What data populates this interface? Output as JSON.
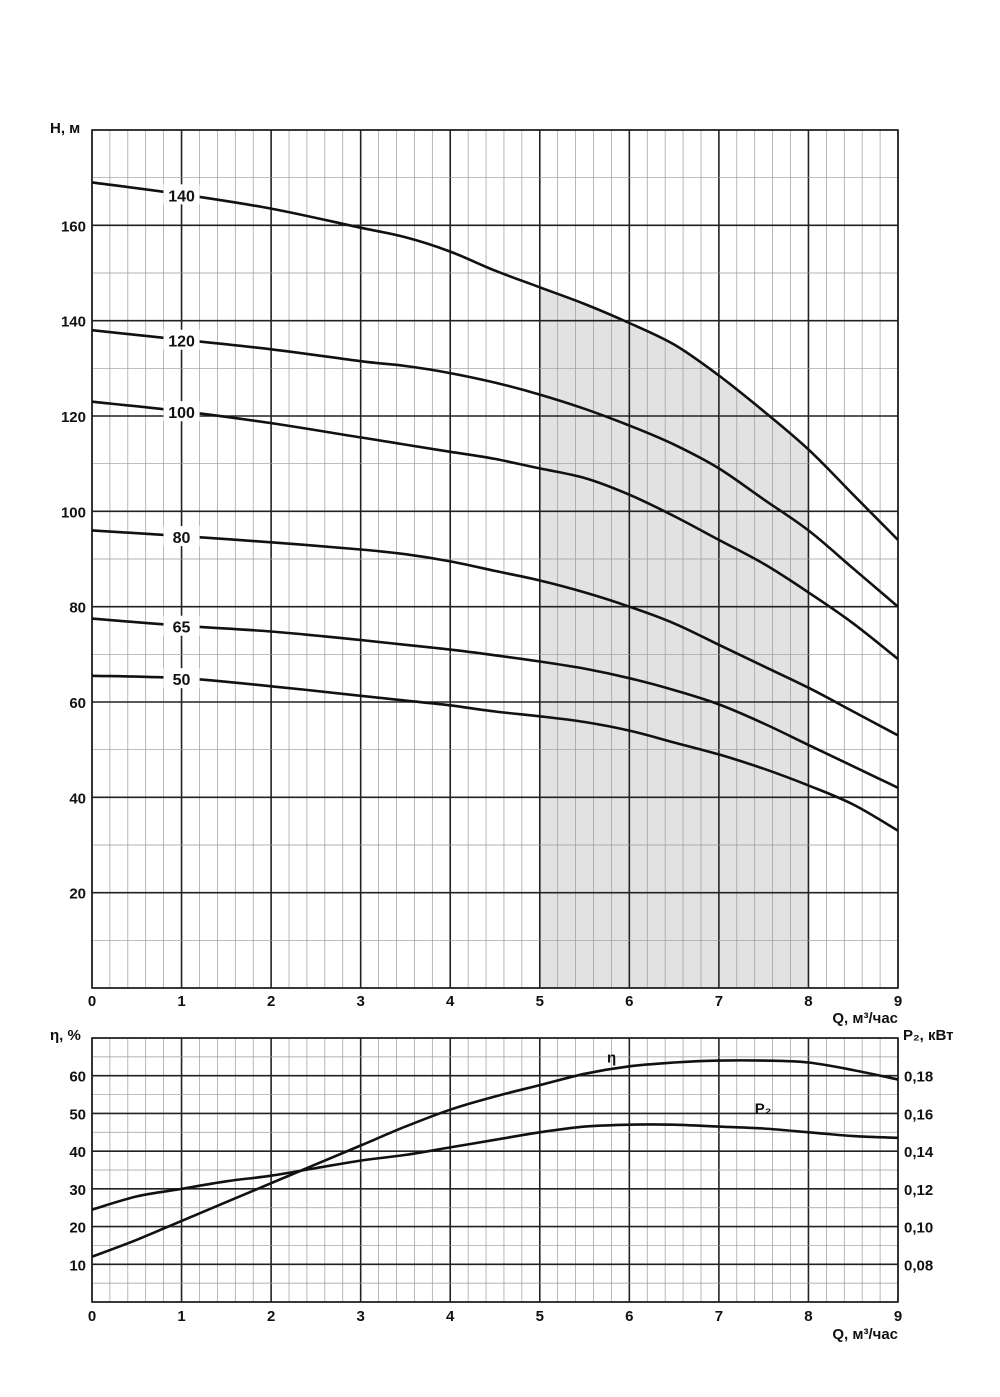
{
  "chart_data": [
    {
      "type": "line",
      "xlabel": "Q, м³/час",
      "ylabel": "H, м",
      "xlim": [
        0,
        9
      ],
      "ylim": [
        0,
        180
      ],
      "x_ticks": [
        "0",
        "1",
        "2",
        "3",
        "4",
        "5",
        "6",
        "7",
        "8",
        "9"
      ],
      "y_ticks": [
        "20",
        "40",
        "60",
        "80",
        "100",
        "120",
        "140",
        "160"
      ],
      "grid": true,
      "shaded_region": {
        "x_from": 5,
        "x_to": 8,
        "color": "#e2e2e2"
      },
      "series": [
        {
          "name": "140",
          "x": [
            0,
            1,
            2,
            3,
            3.5,
            4,
            4.5,
            5,
            5.5,
            6,
            6.5,
            7,
            7.5,
            8,
            8.5,
            9
          ],
          "y": [
            169,
            166.5,
            163.5,
            159.5,
            157.5,
            154.5,
            150.5,
            147,
            143.5,
            139.5,
            135,
            128.5,
            121,
            113,
            103.5,
            94
          ]
        },
        {
          "name": "120",
          "x": [
            0,
            1,
            2,
            3,
            3.5,
            4,
            4.5,
            5,
            5.5,
            6,
            6.5,
            7,
            7.5,
            8,
            8.5,
            9
          ],
          "y": [
            138,
            136,
            134,
            131.5,
            130.5,
            129,
            127,
            124.5,
            121.5,
            118,
            114,
            109,
            102.5,
            96,
            88,
            80
          ]
        },
        {
          "name": "100",
          "x": [
            0,
            1,
            2,
            3,
            3.5,
            4,
            4.5,
            5,
            5.5,
            6,
            6.5,
            7,
            7.5,
            8,
            8.5,
            9
          ],
          "y": [
            123,
            121,
            118.5,
            115.5,
            114,
            112.5,
            111,
            109,
            107,
            103.5,
            99,
            94,
            89,
            83,
            76.5,
            69
          ]
        },
        {
          "name": "80",
          "x": [
            0,
            1,
            2,
            3,
            3.5,
            4,
            4.5,
            5,
            5.5,
            6,
            6.5,
            7,
            7.5,
            8,
            8.5,
            9
          ],
          "y": [
            96,
            94.8,
            93.5,
            92,
            91,
            89.5,
            87.5,
            85.5,
            83,
            80,
            76.5,
            72,
            67.5,
            63,
            58,
            53
          ]
        },
        {
          "name": "65",
          "x": [
            0,
            1,
            2,
            3,
            3.5,
            4,
            4.5,
            5,
            5.5,
            6,
            6.5,
            7,
            7.5,
            8,
            8.5,
            9
          ],
          "y": [
            77.5,
            76,
            74.8,
            73,
            72,
            71,
            69.8,
            68.5,
            67,
            65,
            62.5,
            59.5,
            55.5,
            51,
            46.5,
            42
          ]
        },
        {
          "name": "50",
          "x": [
            0,
            1,
            2,
            3,
            3.5,
            4,
            4.5,
            5,
            5.5,
            6,
            6.5,
            7,
            7.5,
            8,
            8.5,
            9
          ],
          "y": [
            65.5,
            65,
            63.3,
            61.3,
            60.3,
            59.3,
            58,
            57,
            55.8,
            54,
            51.5,
            49,
            46,
            42.5,
            38.5,
            33
          ]
        }
      ]
    },
    {
      "type": "line",
      "xlabel": "Q, м³/час",
      "ylabel": "η, %",
      "ylabel_right": "P₂, кВт",
      "xlim": [
        0,
        9
      ],
      "ylim": [
        0,
        70
      ],
      "ylim_right": [
        0.06,
        0.2
      ],
      "x_ticks": [
        "0",
        "1",
        "2",
        "3",
        "4",
        "5",
        "6",
        "7",
        "8",
        "9"
      ],
      "y_ticks": [
        "10",
        "20",
        "30",
        "40",
        "50",
        "60"
      ],
      "y_ticks_right": [
        "0,08",
        "0,10",
        "0,12",
        "0,14",
        "0,16",
        "0,18"
      ],
      "grid": true,
      "series": [
        {
          "name": "η",
          "axis": "left",
          "x": [
            0,
            0.5,
            1,
            1.5,
            2,
            2.5,
            3,
            3.5,
            4,
            4.5,
            5,
            5.5,
            6,
            6.5,
            7,
            7.5,
            8,
            8.5,
            9
          ],
          "y": [
            12,
            16.5,
            21.5,
            26.5,
            31.5,
            36.5,
            41.5,
            46.5,
            51,
            54.5,
            57.5,
            60.5,
            62.5,
            63.5,
            64,
            64,
            63.5,
            61.5,
            59
          ]
        },
        {
          "name": "P₂",
          "axis": "right",
          "x": [
            0,
            0.5,
            1,
            1.5,
            2,
            2.5,
            3,
            3.5,
            4,
            4.5,
            5,
            5.5,
            6,
            6.5,
            7,
            7.5,
            8,
            8.5,
            9
          ],
          "y": [
            0.109,
            0.116,
            0.12,
            0.124,
            0.127,
            0.131,
            0.135,
            0.138,
            0.142,
            0.146,
            0.15,
            0.153,
            0.154,
            0.154,
            0.153,
            0.152,
            0.15,
            0.148,
            0.147
          ]
        }
      ]
    }
  ]
}
